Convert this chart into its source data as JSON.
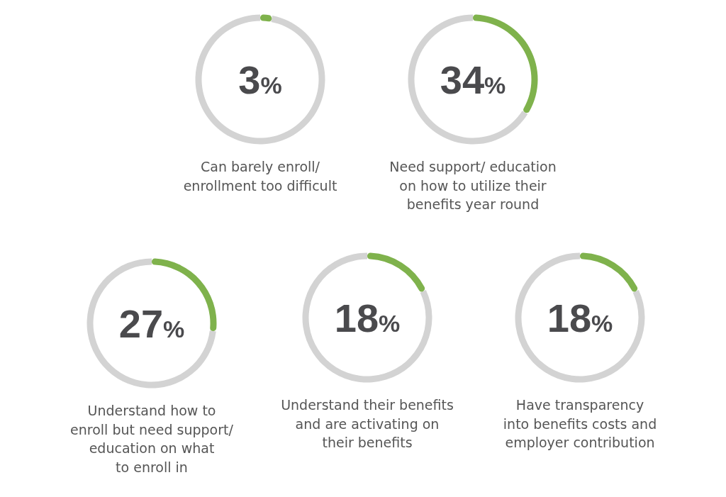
{
  "chart_data": [
    {
      "type": "donut",
      "title": "Can barely enroll/\nenrollment too difficult",
      "categories": [
        null,
        null
      ],
      "values": [
        3,
        97
      ],
      "colors": [
        "#7fb24c",
        "#d3d3d3"
      ],
      "annotations": [
        "3%"
      ]
    },
    {
      "type": "donut",
      "title": "Need support/ education\non how to utilize their\nbenefits year round",
      "categories": [
        null,
        null
      ],
      "values": [
        34,
        66
      ],
      "colors": [
        "#7fb24c",
        "#d3d3d3"
      ],
      "annotations": [
        "34%"
      ]
    },
    {
      "type": "donut",
      "title": "Understand how to\nenroll but need support/\neducation on what\nto enroll in",
      "categories": [
        null,
        null
      ],
      "values": [
        27,
        73
      ],
      "colors": [
        "#7fb24c",
        "#d3d3d3"
      ],
      "annotations": [
        "27%"
      ]
    },
    {
      "type": "donut",
      "title": "Understand their benefits\nand are activating on\ntheir benefits",
      "categories": [
        null,
        null
      ],
      "values": [
        18,
        82
      ],
      "colors": [
        "#7fb24c",
        "#d3d3d3"
      ],
      "annotations": [
        "18%"
      ]
    },
    {
      "type": "donut",
      "title": "Have transparency\ninto benefits costs and\nemployer contribution",
      "categories": [
        null,
        null
      ],
      "values": [
        18,
        82
      ],
      "colors": [
        "#7fb24c",
        "#d3d3d3"
      ],
      "annotations": [
        "18%"
      ]
    }
  ]
}
